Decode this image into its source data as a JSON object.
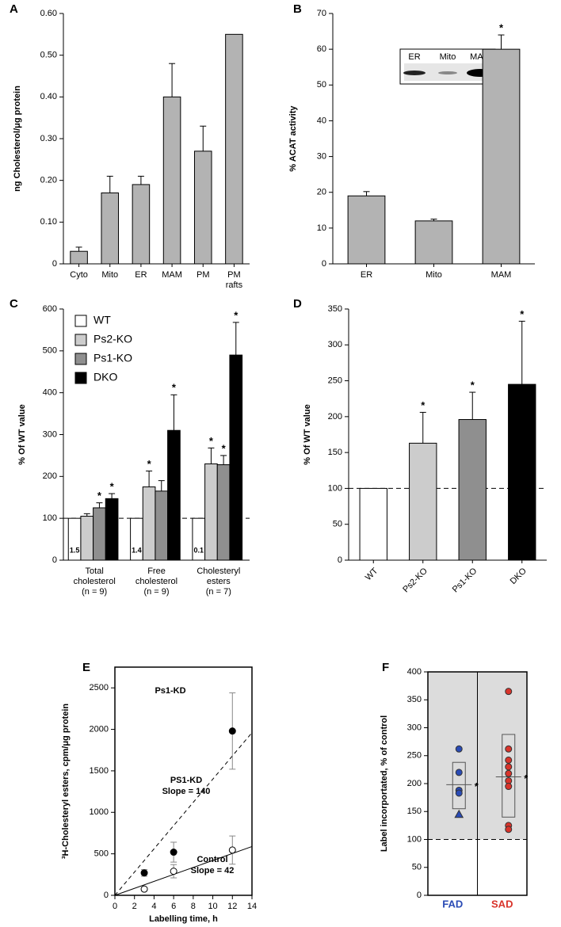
{
  "chart_data": [
    {
      "panel": "A",
      "type": "bar",
      "categories": [
        [
          "Cyto"
        ],
        [
          "Mito"
        ],
        [
          "ER"
        ],
        [
          "MAM"
        ],
        [
          "PM"
        ],
        [
          "PM",
          "rafts"
        ]
      ],
      "values": [
        0.03,
        0.17,
        0.19,
        0.4,
        0.27,
        0.55
      ],
      "errors": [
        0.01,
        0.04,
        0.02,
        0.08,
        0.06,
        null
      ],
      "color": "#b3b3b3",
      "y_label": "ng Cholesterol/μg protein",
      "ylim": [
        0,
        0.6
      ],
      "yticks": [
        0,
        {
          "value": 0.1,
          "label": "0.10"
        },
        {
          "value": 0.2,
          "label": "0.20"
        },
        {
          "value": 0.3,
          "label": "0.30"
        },
        {
          "value": 0.4,
          "label": "0.40"
        },
        {
          "value": 0.5,
          "label": "0.50"
        },
        {
          "value": 0.6,
          "label": "0.60"
        }
      ]
    },
    {
      "panel": "B",
      "type": "bar",
      "categories": [
        [
          "ER"
        ],
        [
          "Mito"
        ],
        [
          "MAM"
        ]
      ],
      "values": [
        19,
        12,
        60
      ],
      "errors": [
        1.2,
        0.5,
        4
      ],
      "annotations": [
        null,
        null,
        "*"
      ],
      "color": "#b3b3b3",
      "y_label": "% ACAT activity",
      "ylim": [
        0,
        70
      ],
      "yticks": [
        0,
        10,
        20,
        30,
        40,
        50,
        60,
        70
      ],
      "inset_labels": [
        "ER",
        "Mito",
        "MAM"
      ]
    },
    {
      "panel": "C",
      "type": "grouped_bar",
      "categories": [
        [
          "Total",
          "cholesterol",
          "(n = 9)"
        ],
        [
          "Free",
          "cholesterol",
          "(n = 9)"
        ],
        [
          "Cholesteryl",
          "esters",
          "(n = 7)"
        ]
      ],
      "series": [
        {
          "name": "WT",
          "color": "#ffffff",
          "values": [
            100,
            100,
            100
          ],
          "errors": [
            null,
            null,
            null
          ],
          "bar_labels": [
            "1.5",
            "1.4",
            "0.1"
          ],
          "stars": [
            null,
            null,
            null
          ]
        },
        {
          "name": "Ps2-KO",
          "color": "#cccccc",
          "values": [
            105,
            175,
            230
          ],
          "errors": [
            6,
            38,
            38
          ],
          "stars": [
            null,
            "*",
            "*"
          ]
        },
        {
          "name": "Ps1-KO",
          "color": "#8f8f8f",
          "values": [
            125,
            165,
            228
          ],
          "errors": [
            12,
            25,
            22
          ],
          "stars": [
            "*",
            null,
            "*"
          ]
        },
        {
          "name": "DKO",
          "color": "#000000",
          "values": [
            147,
            310,
            490
          ],
          "errors": [
            12,
            85,
            78
          ],
          "stars": [
            "*",
            "*",
            "*"
          ]
        }
      ],
      "y_label": "% Of WT value",
      "ylim": [
        0,
        600
      ],
      "yticks": [
        0,
        100,
        200,
        300,
        400,
        500,
        600
      ],
      "reference_line": 100,
      "legend": "top-left"
    },
    {
      "panel": "D",
      "type": "bar",
      "categories": [
        [
          "WT"
        ],
        [
          "Ps2-KO"
        ],
        [
          "Ps1-KO"
        ],
        [
          "DKO"
        ]
      ],
      "values": [
        100,
        163,
        196,
        245
      ],
      "errors": [
        null,
        43,
        38,
        88
      ],
      "colors": [
        "#ffffff",
        "#cccccc",
        "#8f8f8f",
        "#000000"
      ],
      "annotations": [
        null,
        "*",
        "*",
        "*"
      ],
      "y_label": "% Of WT value",
      "ylim": [
        0,
        350
      ],
      "yticks": [
        0,
        50,
        100,
        150,
        200,
        250,
        300,
        350
      ],
      "reference_line": 100
    },
    {
      "panel": "E",
      "type": "scatter",
      "title": "Ps1-KD",
      "x_label": "Labelling time, h",
      "y_label": "³H-Cholesteryl esters, cpm/μg protein",
      "xlim": [
        0,
        14
      ],
      "xticks": [
        0,
        2,
        4,
        6,
        8,
        10,
        12,
        14
      ],
      "ylim": [
        0,
        2750
      ],
      "yticks": [
        0,
        500,
        1000,
        1500,
        2000,
        2500
      ],
      "series": [
        {
          "name": "PS1-KD",
          "fill": "#000000",
          "x": [
            3,
            6,
            12
          ],
          "values": [
            270,
            520,
            1980
          ],
          "errors": [
            40,
            120,
            460
          ],
          "fit_slope": 140,
          "fit_label": "Slope = 140",
          "dashed": true
        },
        {
          "name": "Control",
          "fill": "#ffffff",
          "x": [
            3,
            6,
            12
          ],
          "values": [
            75,
            290,
            545
          ],
          "errors": [
            20,
            80,
            170
          ],
          "fit_slope": 42,
          "fit_label": "Slope = 42",
          "dashed": false
        }
      ]
    },
    {
      "panel": "F",
      "type": "dot",
      "y_label": "Label incorportated, % of control",
      "ylim": [
        0,
        400
      ],
      "yticks": [
        0,
        50,
        100,
        150,
        200,
        250,
        300,
        350,
        400
      ],
      "reference_line": 100,
      "shade_above_reference": true,
      "groups": [
        {
          "name": "FAD",
          "color": "#2a4bb5",
          "values": [
            262,
            220,
            188,
            183,
            145
          ],
          "markers": [
            "circle",
            "circle",
            "circle",
            "circle",
            "triangle"
          ],
          "mean": 198,
          "range": [
            155,
            238
          ],
          "annotation": "*"
        },
        {
          "name": "SAD",
          "color": "#d9342b",
          "values": [
            365,
            262,
            242,
            230,
            218,
            205,
            195,
            125,
            118
          ],
          "markers": [
            "circle",
            "circle",
            "circle",
            "circle",
            "circle",
            "circle",
            "circle",
            "circle",
            "circle"
          ],
          "mean": 212,
          "range": [
            140,
            288
          ],
          "annotation": "*"
        }
      ]
    }
  ]
}
